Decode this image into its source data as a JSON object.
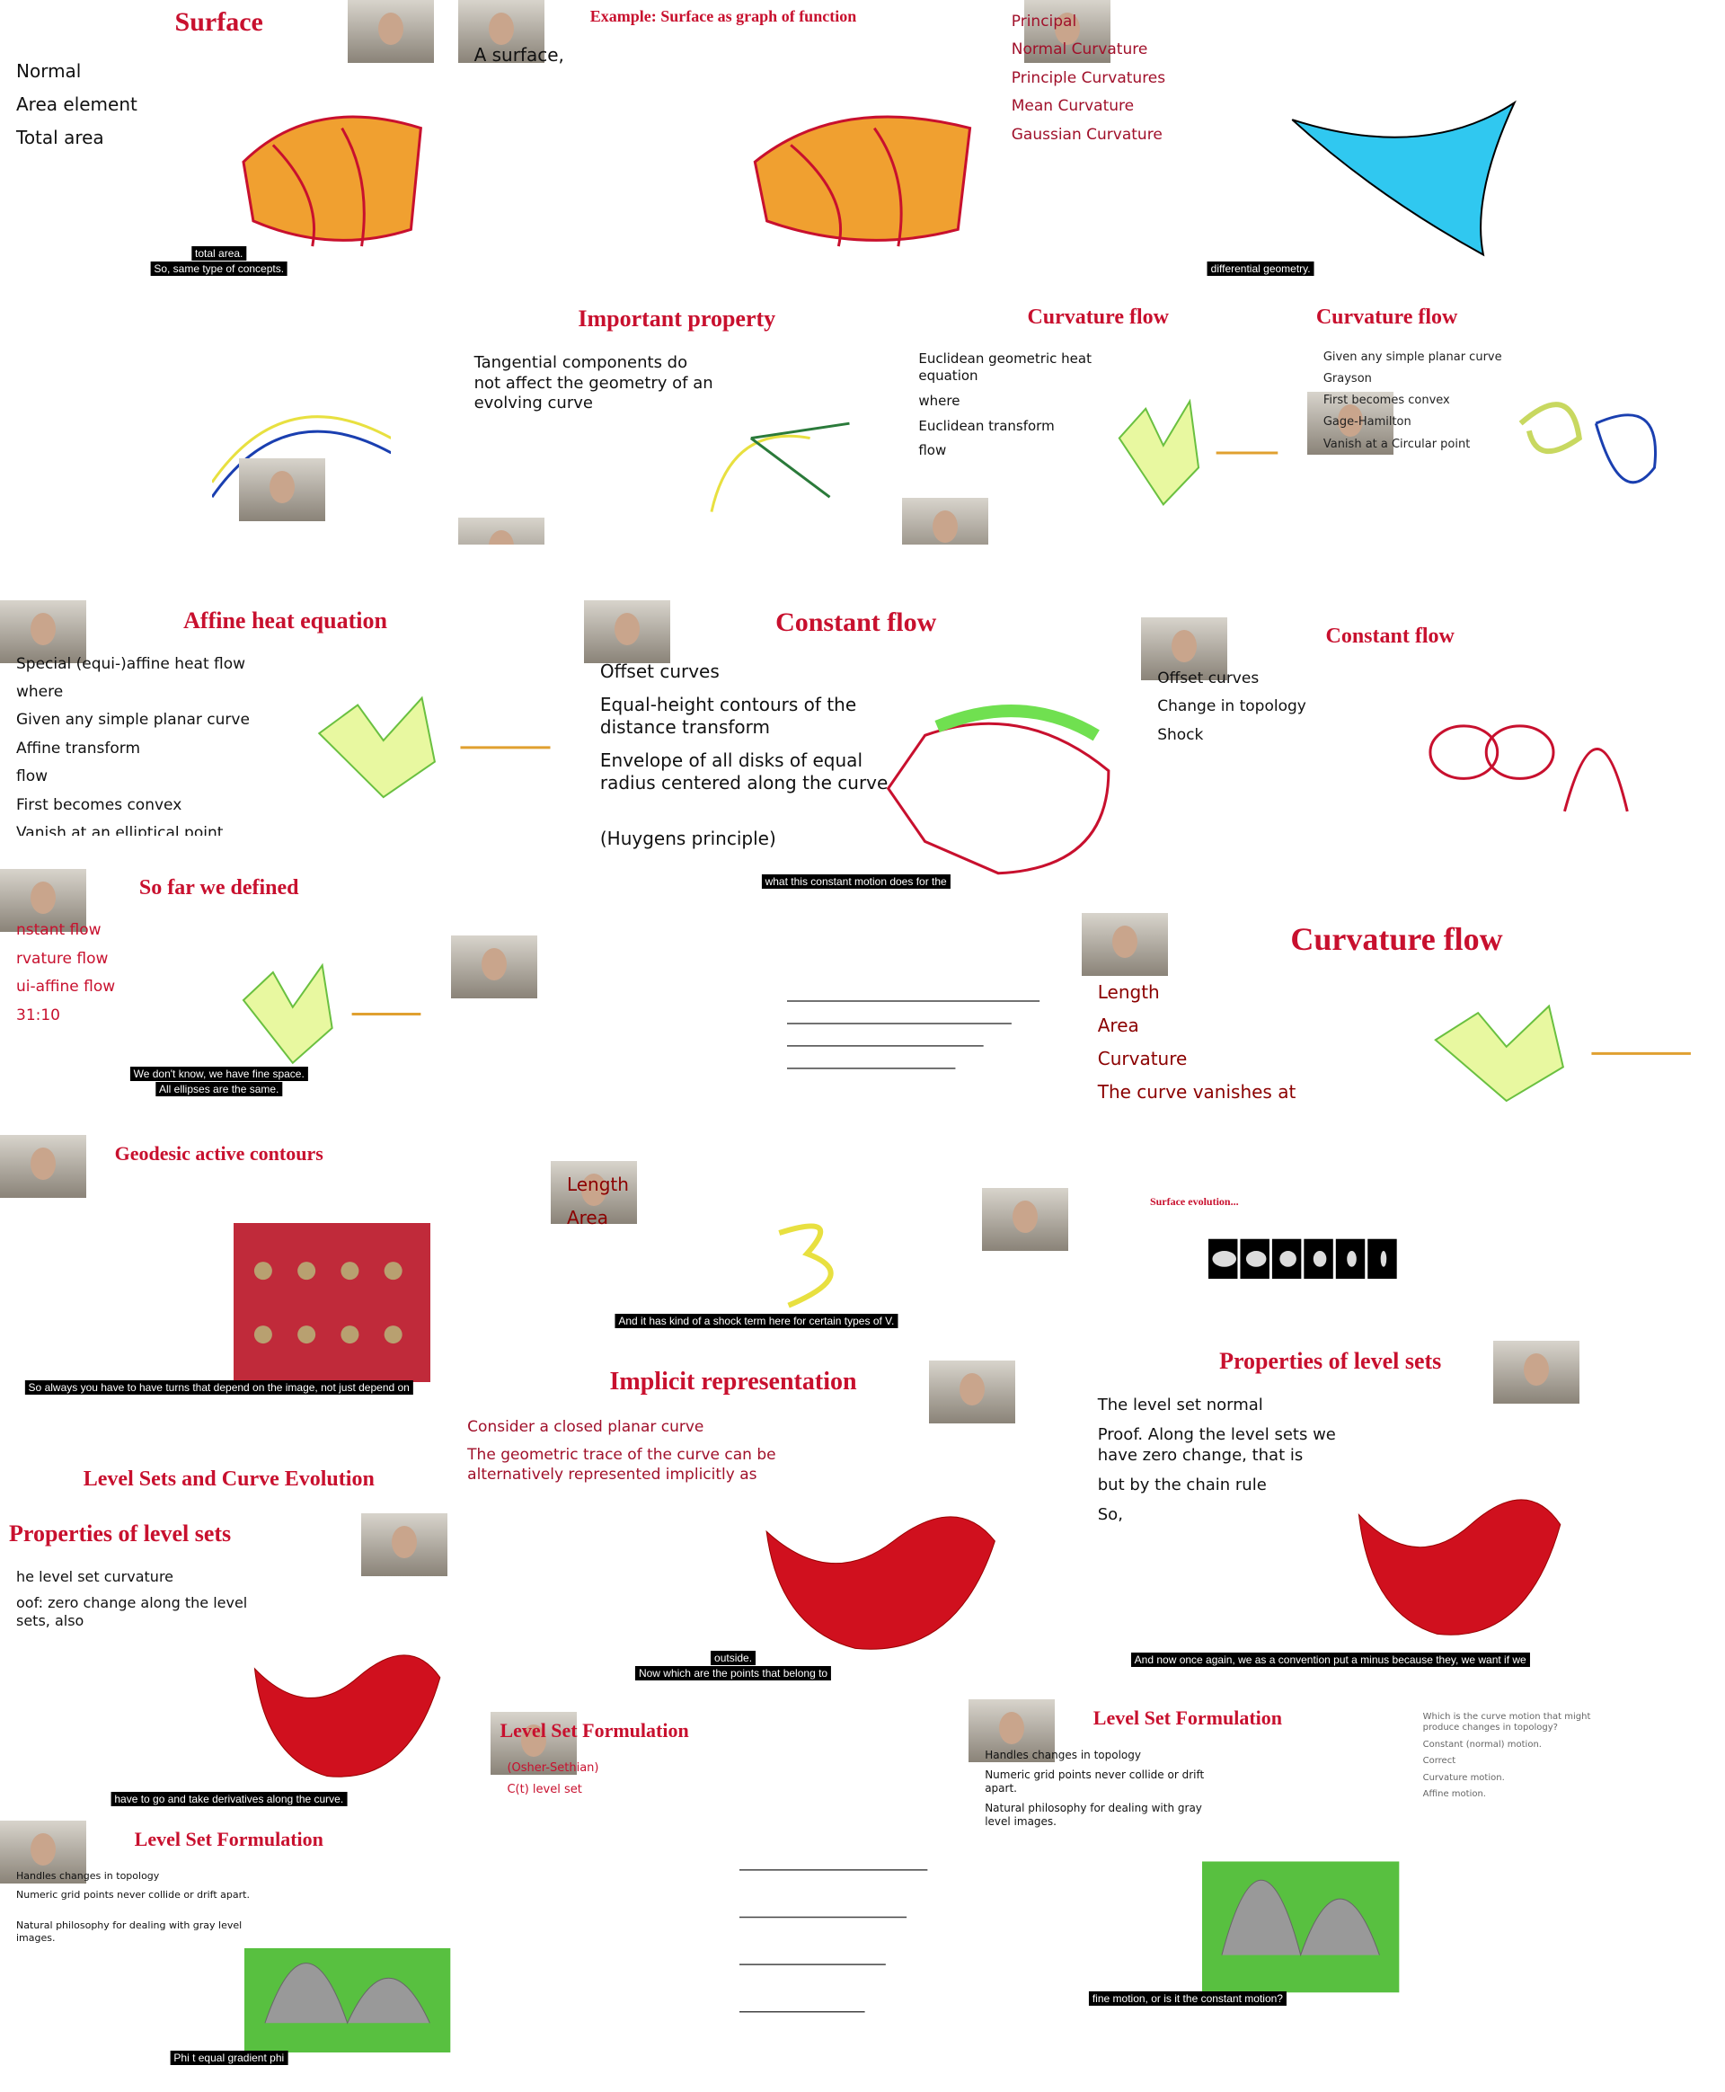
{
  "slides": [
    {
      "title": "Surface",
      "texts": [
        "Normal",
        "Area element",
        "Total area"
      ],
      "captions": [
        "total area.",
        "So, same type of concepts."
      ]
    },
    {
      "title": "Example: Surface as graph of function",
      "texts": [
        "A surface,"
      ]
    },
    {
      "texts": [
        "Principal",
        "Normal Curvature",
        "Principle Curvatures",
        "Mean Curvature",
        "Gaussian Curvature"
      ],
      "captions": [
        "differential geometry."
      ]
    },
    {
      "texts": []
    },
    {
      "title": "Important property",
      "texts": [
        "Tangential components do not affect the geometry of an evolving curve"
      ]
    },
    {
      "title": "Curvature flow",
      "texts": [
        "Euclidean geometric heat equation",
        "where",
        "Euclidean transform",
        "flow"
      ]
    },
    {
      "title": "Curvature flow",
      "texts": [
        "Given any simple planar curve",
        "Grayson",
        "First becomes convex",
        "Gage-Hamilton",
        "Vanish at a Circular point"
      ]
    },
    {
      "title": "Affine heat equation",
      "texts": [
        "Special (equi-)affine heat flow",
        "where",
        "Given any simple planar curve",
        "Affine transform",
        "flow",
        "First becomes convex",
        "Vanish at an elliptical point"
      ]
    },
    {
      "title": "Constant flow",
      "texts": [
        "Offset curves",
        "Equal-height contours of the distance transform",
        "Envelope of all disks of equal radius centered along the curve",
        "(Huygens principle)"
      ],
      "captions": [
        "what this constant motion does for the"
      ]
    },
    {
      "title": "Constant flow",
      "texts": [
        "Offset curves",
        "Change in topology",
        "Shock"
      ]
    },
    {
      "title": "So far we defined",
      "texts": [
        "nstant flow",
        "rvature flow",
        "ui-affine flow",
        "31:10"
      ],
      "captions": [
        "We don't know, we have fine space.",
        "All ellipses are the same."
      ]
    },
    {
      "texts": []
    },
    {
      "title": "Curvature flow",
      "texts": [
        "Length",
        "Area",
        "Curvature",
        "The curve vanishes at"
      ]
    },
    {
      "title": "Geodesic active contours",
      "texts": [],
      "captions": [
        "So always you have to have turns that depend on the image, not just depend on"
      ]
    },
    {
      "texts": [
        "Length",
        "Area"
      ],
      "captions": [
        "And it has kind of a shock term here for certain types of V."
      ]
    },
    {
      "title": "Surface evolution...",
      "texts": []
    },
    {
      "title": "Implicit representation",
      "texts": [
        "Consider a closed planar curve",
        "The geometric trace of the curve can be alternatively represented implicitly as"
      ],
      "captions": [
        "outside.",
        "Now which are the points that belong to"
      ]
    },
    {
      "title": "Properties of level sets",
      "texts": [
        "The level set normal",
        "Proof. Along the level sets we have zero change, that is",
        "but by the chain rule",
        "So,"
      ],
      "captions": [
        "And now once again, we as a convention put a minus because they, we want if we"
      ]
    },
    {
      "title": "Level Sets and Curve Evolution",
      "texts": []
    },
    {
      "title": "Properties of level sets",
      "texts": [
        "he level set curvature",
        "oof: zero change along the level sets, also"
      ],
      "captions": [
        "have to go and take derivatives along the curve."
      ]
    },
    {
      "title": "Level Set Formulation",
      "texts": [
        "(Osher-Sethian)",
        "C(t) level set"
      ]
    },
    {
      "title": "Level Set Formulation",
      "texts": [
        "Handles changes in topology",
        "Numeric grid points never collide or drift apart.",
        "Natural philosophy for dealing with gray level images."
      ],
      "captions": [
        "fine motion, or is it the constant motion?"
      ]
    },
    {
      "texts": [
        "Which is the curve motion that might produce changes in topology?",
        "Constant (normal) motion.",
        "Correct",
        "Curvature motion.",
        "Affine motion."
      ]
    },
    {
      "title": "Level Set Formulation",
      "texts": [
        "Handles changes in topology",
        "Numeric grid points never collide or drift apart.",
        "Natural philosophy for dealing with gray level images."
      ],
      "captions": [
        "Phi t equal gradient phi"
      ]
    }
  ]
}
